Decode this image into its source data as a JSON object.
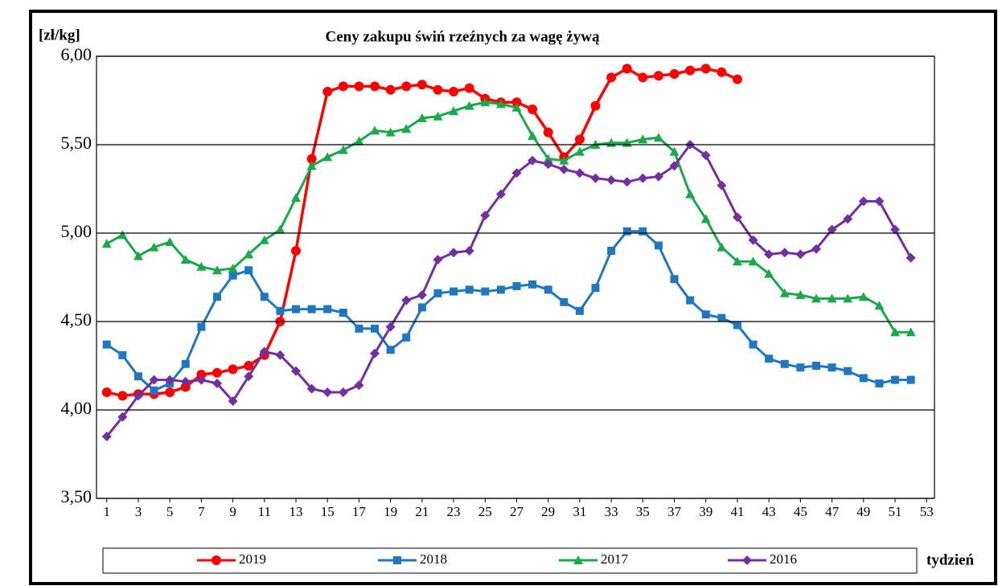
{
  "chart_data": {
    "type": "line",
    "title": "Ceny zakupu świń rzeźnych  za wagę żywą",
    "y_label": "[zł/kg]",
    "x_label": "tydzień",
    "x": [
      1,
      2,
      3,
      4,
      5,
      6,
      7,
      8,
      9,
      10,
      11,
      12,
      13,
      14,
      15,
      16,
      17,
      18,
      19,
      20,
      21,
      22,
      23,
      24,
      25,
      26,
      27,
      28,
      29,
      30,
      31,
      32,
      33,
      34,
      35,
      36,
      37,
      38,
      39,
      40,
      41,
      42,
      43,
      44,
      45,
      46,
      47,
      48,
      49,
      50,
      51,
      52
    ],
    "xlim": [
      0.35,
      53.5
    ],
    "xticks": [
      1,
      3,
      5,
      7,
      9,
      11,
      13,
      15,
      17,
      19,
      21,
      23,
      25,
      27,
      29,
      31,
      33,
      35,
      37,
      39,
      41,
      43,
      45,
      47,
      49,
      51,
      53
    ],
    "ylim": [
      3.5,
      6
    ],
    "yticks": [
      {
        "value": 3.5,
        "label": "3,50"
      },
      {
        "value": 4,
        "label": "4,00"
      },
      {
        "value": 4.5,
        "label": "4,50"
      },
      {
        "value": 5,
        "label": "5,00"
      },
      {
        "value": 5.5,
        "label": "5,50"
      },
      {
        "value": 6,
        "label": "6,00"
      }
    ],
    "grid": true,
    "legend": "bottom",
    "series": [
      {
        "name": "2019",
        "color": "#ff0000",
        "marker": "circle",
        "values": [
          4.1,
          4.08,
          4.09,
          4.09,
          4.1,
          4.13,
          4.2,
          4.21,
          4.23,
          4.25,
          4.31,
          4.5,
          4.9,
          5.42,
          5.8,
          5.83,
          5.83,
          5.83,
          5.81,
          5.83,
          5.84,
          5.81,
          5.8,
          5.82,
          5.76,
          5.74,
          5.74,
          5.7,
          5.57,
          5.43,
          5.53,
          5.72,
          5.88,
          5.93,
          5.88,
          5.89,
          5.9,
          5.92,
          5.93,
          5.91,
          5.87,
          null,
          null,
          null,
          null,
          null,
          null,
          null,
          null,
          null,
          null,
          null
        ]
      },
      {
        "name": "2018",
        "color": "#1f77c0",
        "marker": "square",
        "values": [
          4.37,
          4.31,
          4.19,
          4.11,
          4.15,
          4.26,
          4.47,
          4.64,
          4.76,
          4.79,
          4.64,
          4.56,
          4.57,
          4.57,
          4.57,
          4.55,
          4.46,
          4.46,
          4.34,
          4.41,
          4.58,
          4.66,
          4.67,
          4.68,
          4.67,
          4.68,
          4.7,
          4.71,
          4.68,
          4.61,
          4.56,
          4.69,
          4.9,
          5.01,
          5.01,
          4.93,
          4.74,
          4.62,
          4.54,
          4.52,
          4.48,
          4.37,
          4.29,
          4.26,
          4.24,
          4.25,
          4.24,
          4.22,
          4.18,
          4.15,
          4.17,
          4.17
        ]
      },
      {
        "name": "2017",
        "color": "#19a84a",
        "marker": "triangle",
        "values": [
          4.94,
          4.99,
          4.87,
          4.92,
          4.95,
          4.85,
          4.81,
          4.79,
          4.8,
          4.88,
          4.96,
          5.02,
          5.2,
          5.38,
          5.43,
          5.47,
          5.52,
          5.58,
          5.57,
          5.59,
          5.65,
          5.66,
          5.69,
          5.72,
          5.74,
          5.73,
          5.71,
          5.55,
          5.42,
          5.41,
          5.46,
          5.5,
          5.51,
          5.51,
          5.53,
          5.54,
          5.46,
          5.22,
          5.08,
          4.92,
          4.84,
          4.84,
          4.77,
          4.66,
          4.65,
          4.63,
          4.63,
          4.63,
          4.64,
          4.59,
          4.44,
          4.44
        ]
      },
      {
        "name": "2016",
        "color": "#7030a0",
        "marker": "diamond",
        "values": [
          3.85,
          3.96,
          4.08,
          4.17,
          4.17,
          4.16,
          4.17,
          4.15,
          4.05,
          4.19,
          4.33,
          4.31,
          4.22,
          4.12,
          4.1,
          4.1,
          4.14,
          4.32,
          4.47,
          4.62,
          4.65,
          4.85,
          4.89,
          4.9,
          5.1,
          5.22,
          5.34,
          5.41,
          5.39,
          5.36,
          5.34,
          5.31,
          5.3,
          5.29,
          5.31,
          5.32,
          5.38,
          5.5,
          5.44,
          5.27,
          5.09,
          4.96,
          4.88,
          4.89,
          4.88,
          4.91,
          5.02,
          5.08,
          5.18,
          5.18,
          5.02,
          4.86
        ]
      }
    ]
  }
}
